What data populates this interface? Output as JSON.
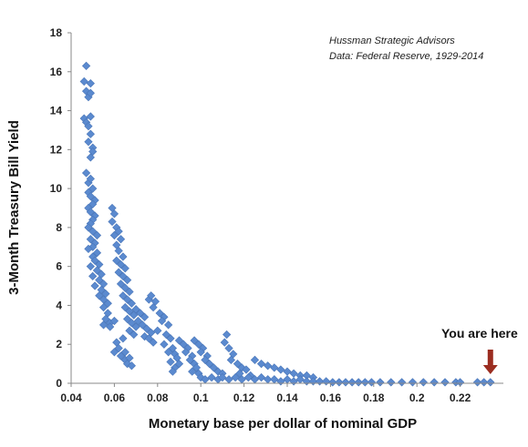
{
  "chart_data": {
    "type": "scatter",
    "title": "",
    "xlabel": "Monetary base per dollar of nominal GDP",
    "ylabel": "3-Month Treasury Bill Yield",
    "xlim": [
      0.04,
      0.24
    ],
    "ylim": [
      0,
      18
    ],
    "xticks": [
      "0.04",
      "0.06",
      "0.08",
      "0.1",
      "0.12",
      "0.14",
      "0.16",
      "0.18",
      "0.2",
      "0.22"
    ],
    "yticks": [
      "0",
      "2",
      "4",
      "6",
      "8",
      "10",
      "12",
      "14",
      "16",
      "18"
    ],
    "grid": false,
    "marker_color": "#5B8ACF",
    "annotation_lines": [
      "Hussman Strategic Advisors",
      "Data: Federal Reserve, 1929-2014"
    ],
    "callout": {
      "text": "You are here",
      "x": 0.234,
      "y": 0.0,
      "arrow_color": "#9B2D20"
    },
    "points": [
      [
        0.047,
        16.3
      ],
      [
        0.046,
        15.5
      ],
      [
        0.049,
        15.4
      ],
      [
        0.047,
        15.0
      ],
      [
        0.048,
        14.7
      ],
      [
        0.049,
        14.9
      ],
      [
        0.046,
        13.6
      ],
      [
        0.047,
        13.4
      ],
      [
        0.049,
        13.7
      ],
      [
        0.048,
        13.2
      ],
      [
        0.049,
        12.8
      ],
      [
        0.048,
        12.4
      ],
      [
        0.05,
        12.1
      ],
      [
        0.049,
        11.6
      ],
      [
        0.05,
        11.9
      ],
      [
        0.047,
        10.8
      ],
      [
        0.048,
        10.3
      ],
      [
        0.049,
        10.5
      ],
      [
        0.05,
        10.0
      ],
      [
        0.048,
        9.8
      ],
      [
        0.049,
        9.6
      ],
      [
        0.051,
        9.4
      ],
      [
        0.05,
        9.2
      ],
      [
        0.048,
        9.0
      ],
      [
        0.049,
        8.8
      ],
      [
        0.051,
        8.6
      ],
      [
        0.05,
        8.4
      ],
      [
        0.049,
        8.2
      ],
      [
        0.048,
        8.0
      ],
      [
        0.05,
        7.8
      ],
      [
        0.052,
        7.6
      ],
      [
        0.049,
        7.4
      ],
      [
        0.051,
        7.2
      ],
      [
        0.05,
        7.0
      ],
      [
        0.048,
        6.9
      ],
      [
        0.052,
        6.7
      ],
      [
        0.05,
        6.5
      ],
      [
        0.051,
        6.3
      ],
      [
        0.053,
        6.1
      ],
      [
        0.049,
        6.0
      ],
      [
        0.052,
        5.8
      ],
      [
        0.054,
        5.6
      ],
      [
        0.05,
        5.5
      ],
      [
        0.053,
        5.3
      ],
      [
        0.055,
        5.1
      ],
      [
        0.051,
        5.0
      ],
      [
        0.054,
        4.8
      ],
      [
        0.056,
        4.6
      ],
      [
        0.053,
        4.5
      ],
      [
        0.055,
        4.3
      ],
      [
        0.057,
        4.1
      ],
      [
        0.055,
        3.9
      ],
      [
        0.057,
        3.6
      ],
      [
        0.056,
        3.3
      ],
      [
        0.058,
        3.1
      ],
      [
        0.058,
        2.9
      ],
      [
        0.055,
        3.0
      ],
      [
        0.06,
        3.2
      ],
      [
        0.059,
        9.0
      ],
      [
        0.06,
        8.7
      ],
      [
        0.059,
        8.3
      ],
      [
        0.061,
        8.0
      ],
      [
        0.06,
        7.6
      ],
      [
        0.062,
        7.8
      ],
      [
        0.063,
        7.4
      ],
      [
        0.061,
        7.1
      ],
      [
        0.062,
        6.8
      ],
      [
        0.064,
        6.5
      ],
      [
        0.061,
        6.3
      ],
      [
        0.063,
        6.1
      ],
      [
        0.065,
        5.9
      ],
      [
        0.062,
        5.7
      ],
      [
        0.064,
        5.5
      ],
      [
        0.066,
        5.3
      ],
      [
        0.063,
        5.1
      ],
      [
        0.065,
        4.9
      ],
      [
        0.067,
        4.7
      ],
      [
        0.064,
        4.5
      ],
      [
        0.066,
        4.3
      ],
      [
        0.068,
        4.1
      ],
      [
        0.065,
        3.9
      ],
      [
        0.067,
        3.7
      ],
      [
        0.069,
        3.5
      ],
      [
        0.066,
        3.3
      ],
      [
        0.068,
        3.1
      ],
      [
        0.07,
        2.9
      ],
      [
        0.067,
        2.7
      ],
      [
        0.069,
        2.5
      ],
      [
        0.064,
        2.3
      ],
      [
        0.061,
        2.1
      ],
      [
        0.062,
        1.8
      ],
      [
        0.06,
        1.6
      ],
      [
        0.063,
        1.4
      ],
      [
        0.065,
        1.2
      ],
      [
        0.066,
        1.0
      ],
      [
        0.068,
        0.9
      ],
      [
        0.067,
        1.3
      ],
      [
        0.065,
        1.6
      ],
      [
        0.07,
        3.8
      ],
      [
        0.072,
        3.6
      ],
      [
        0.074,
        3.4
      ],
      [
        0.071,
        3.2
      ],
      [
        0.073,
        3.0
      ],
      [
        0.075,
        2.8
      ],
      [
        0.077,
        2.6
      ],
      [
        0.074,
        2.4
      ],
      [
        0.076,
        2.3
      ],
      [
        0.078,
        2.1
      ],
      [
        0.076,
        4.3
      ],
      [
        0.077,
        4.5
      ],
      [
        0.079,
        4.2
      ],
      [
        0.078,
        3.9
      ],
      [
        0.081,
        3.6
      ],
      [
        0.083,
        3.4
      ],
      [
        0.082,
        3.2
      ],
      [
        0.085,
        3.0
      ],
      [
        0.08,
        2.7
      ],
      [
        0.084,
        2.5
      ],
      [
        0.086,
        2.3
      ],
      [
        0.083,
        2.0
      ],
      [
        0.087,
        1.8
      ],
      [
        0.085,
        1.6
      ],
      [
        0.088,
        1.5
      ],
      [
        0.089,
        1.3
      ],
      [
        0.086,
        1.1
      ],
      [
        0.09,
        1.0
      ],
      [
        0.088,
        0.8
      ],
      [
        0.087,
        0.6
      ],
      [
        0.09,
        2.2
      ],
      [
        0.092,
        2.0
      ],
      [
        0.094,
        1.8
      ],
      [
        0.093,
        1.6
      ],
      [
        0.096,
        1.4
      ],
      [
        0.095,
        1.2
      ],
      [
        0.097,
        1.0
      ],
      [
        0.098,
        0.8
      ],
      [
        0.096,
        0.6
      ],
      [
        0.099,
        0.5
      ],
      [
        0.097,
        2.2
      ],
      [
        0.099,
        2.0
      ],
      [
        0.101,
        1.8
      ],
      [
        0.1,
        1.6
      ],
      [
        0.103,
        1.4
      ],
      [
        0.102,
        1.2
      ],
      [
        0.104,
        1.0
      ],
      [
        0.106,
        0.8
      ],
      [
        0.108,
        0.6
      ],
      [
        0.11,
        0.5
      ],
      [
        0.112,
        2.5
      ],
      [
        0.111,
        2.1
      ],
      [
        0.113,
        1.8
      ],
      [
        0.115,
        1.5
      ],
      [
        0.114,
        1.2
      ],
      [
        0.117,
        1.0
      ],
      [
        0.119,
        0.8
      ],
      [
        0.121,
        0.7
      ],
      [
        0.118,
        0.5
      ],
      [
        0.123,
        0.4
      ],
      [
        0.125,
        1.2
      ],
      [
        0.128,
        1.0
      ],
      [
        0.131,
        0.9
      ],
      [
        0.134,
        0.8
      ],
      [
        0.137,
        0.7
      ],
      [
        0.14,
        0.6
      ],
      [
        0.143,
        0.5
      ],
      [
        0.146,
        0.4
      ],
      [
        0.149,
        0.4
      ],
      [
        0.152,
        0.3
      ],
      [
        0.1,
        0.3
      ],
      [
        0.102,
        0.2
      ],
      [
        0.105,
        0.3
      ],
      [
        0.108,
        0.2
      ],
      [
        0.11,
        0.3
      ],
      [
        0.113,
        0.2
      ],
      [
        0.116,
        0.3
      ],
      [
        0.119,
        0.2
      ],
      [
        0.122,
        0.3
      ],
      [
        0.125,
        0.2
      ],
      [
        0.128,
        0.3
      ],
      [
        0.131,
        0.2
      ],
      [
        0.134,
        0.2
      ],
      [
        0.137,
        0.1
      ],
      [
        0.14,
        0.2
      ],
      [
        0.143,
        0.1
      ],
      [
        0.146,
        0.2
      ],
      [
        0.149,
        0.1
      ],
      [
        0.152,
        0.1
      ],
      [
        0.155,
        0.1
      ],
      [
        0.158,
        0.1
      ],
      [
        0.161,
        0.05
      ],
      [
        0.164,
        0.05
      ],
      [
        0.167,
        0.05
      ],
      [
        0.17,
        0.05
      ],
      [
        0.173,
        0.05
      ],
      [
        0.176,
        0.05
      ],
      [
        0.179,
        0.05
      ],
      [
        0.183,
        0.05
      ],
      [
        0.188,
        0.05
      ],
      [
        0.193,
        0.05
      ],
      [
        0.198,
        0.05
      ],
      [
        0.203,
        0.05
      ],
      [
        0.208,
        0.05
      ],
      [
        0.213,
        0.05
      ],
      [
        0.218,
        0.05
      ],
      [
        0.22,
        0.05
      ],
      [
        0.228,
        0.05
      ],
      [
        0.231,
        0.05
      ],
      [
        0.234,
        0.05
      ]
    ]
  }
}
